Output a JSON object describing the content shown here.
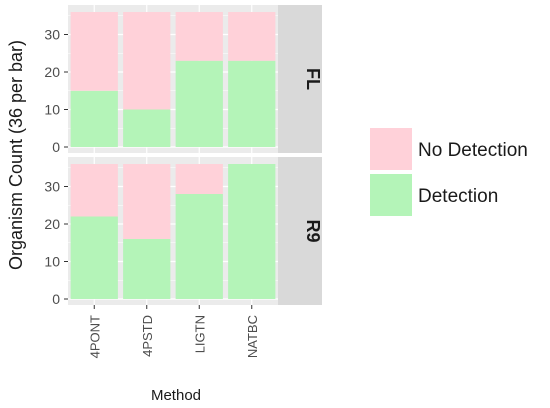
{
  "chart_data": {
    "type": "bar",
    "stacked": true,
    "facet_layout": "rows",
    "xlabel": "Method",
    "ylabel": "Organism Count (36 per bar)",
    "ylim": [
      0,
      36
    ],
    "yticks": [
      0,
      10,
      20,
      30
    ],
    "grid": true,
    "legend_position": "right",
    "categories": [
      "4PONT",
      "4PSTD",
      "LIGTN",
      "NATBC"
    ],
    "panels": [
      {
        "strip_label": "FL",
        "series": [
          {
            "name": "Detection",
            "values": [
              15,
              10,
              23,
              23
            ]
          },
          {
            "name": "No Detection",
            "values": [
              21,
              26,
              13,
              13
            ]
          }
        ]
      },
      {
        "strip_label": "R9",
        "series": [
          {
            "name": "Detection",
            "values": [
              22,
              16,
              28,
              36
            ]
          },
          {
            "name": "No Detection",
            "values": [
              14,
              20,
              8,
              0
            ]
          }
        ]
      }
    ],
    "legend": [
      {
        "label": "No Detection",
        "color": "#ffd1d9"
      },
      {
        "label": "Detection",
        "color": "#b4f4b8"
      }
    ],
    "colors": {
      "panel_background": "#ebebeb",
      "strip_background": "#d9d9d9",
      "grid": "#ffffff"
    }
  }
}
